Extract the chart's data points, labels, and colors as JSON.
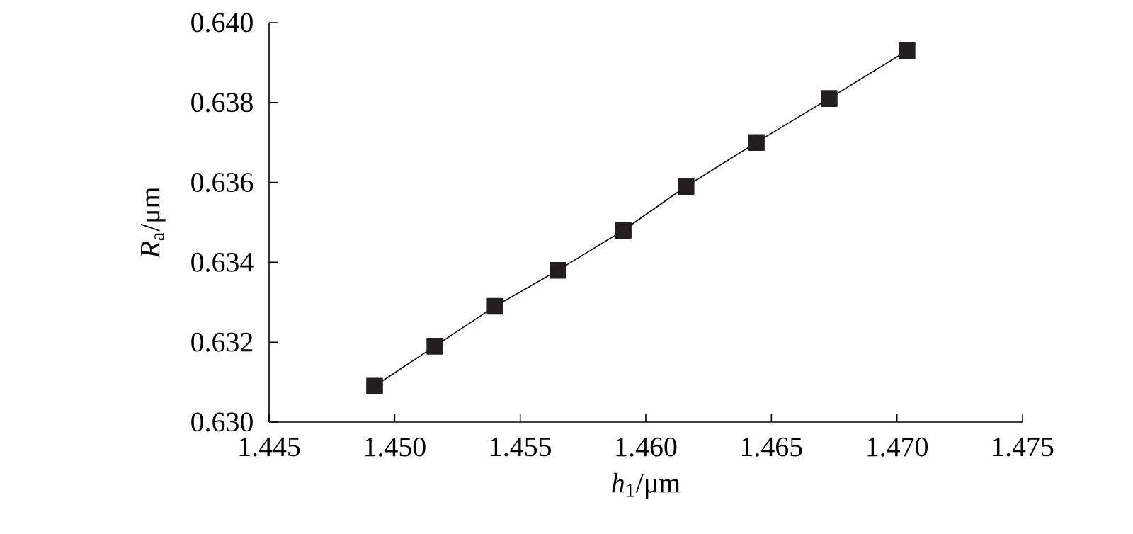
{
  "chart_data": {
    "type": "line",
    "xlabel": "*h*$_{1}$/μm",
    "ylabel": "*R*$_{a}$/μm",
    "x": [
      1.4492,
      1.4516,
      1.454,
      1.4565,
      1.4591,
      1.4616,
      1.4644,
      1.4673,
      1.4704
    ],
    "series": [
      {
        "color": "#231f20",
        "values": [
          0.6309,
          0.6319,
          0.6329,
          0.6338,
          0.6348,
          0.6359,
          0.637,
          0.6381,
          0.6393
        ]
      }
    ],
    "xlim": [
      1.445,
      1.475
    ],
    "xticks": [
      1.445,
      {
        "value": 1.45,
        "label": "1.450"
      },
      1.455,
      {
        "value": 1.46,
        "label": "1.460"
      },
      1.465,
      {
        "value": 1.47,
        "label": "1.470"
      },
      1.475
    ],
    "ylim": [
      0.63,
      0.64
    ],
    "yticks": [
      {
        "value": 0.63,
        "label": "0.630"
      },
      0.632,
      0.634,
      0.636,
      0.638,
      {
        "value": 0.64,
        "label": "0.640"
      }
    ],
    "marker": "square",
    "line_style": "solid"
  }
}
